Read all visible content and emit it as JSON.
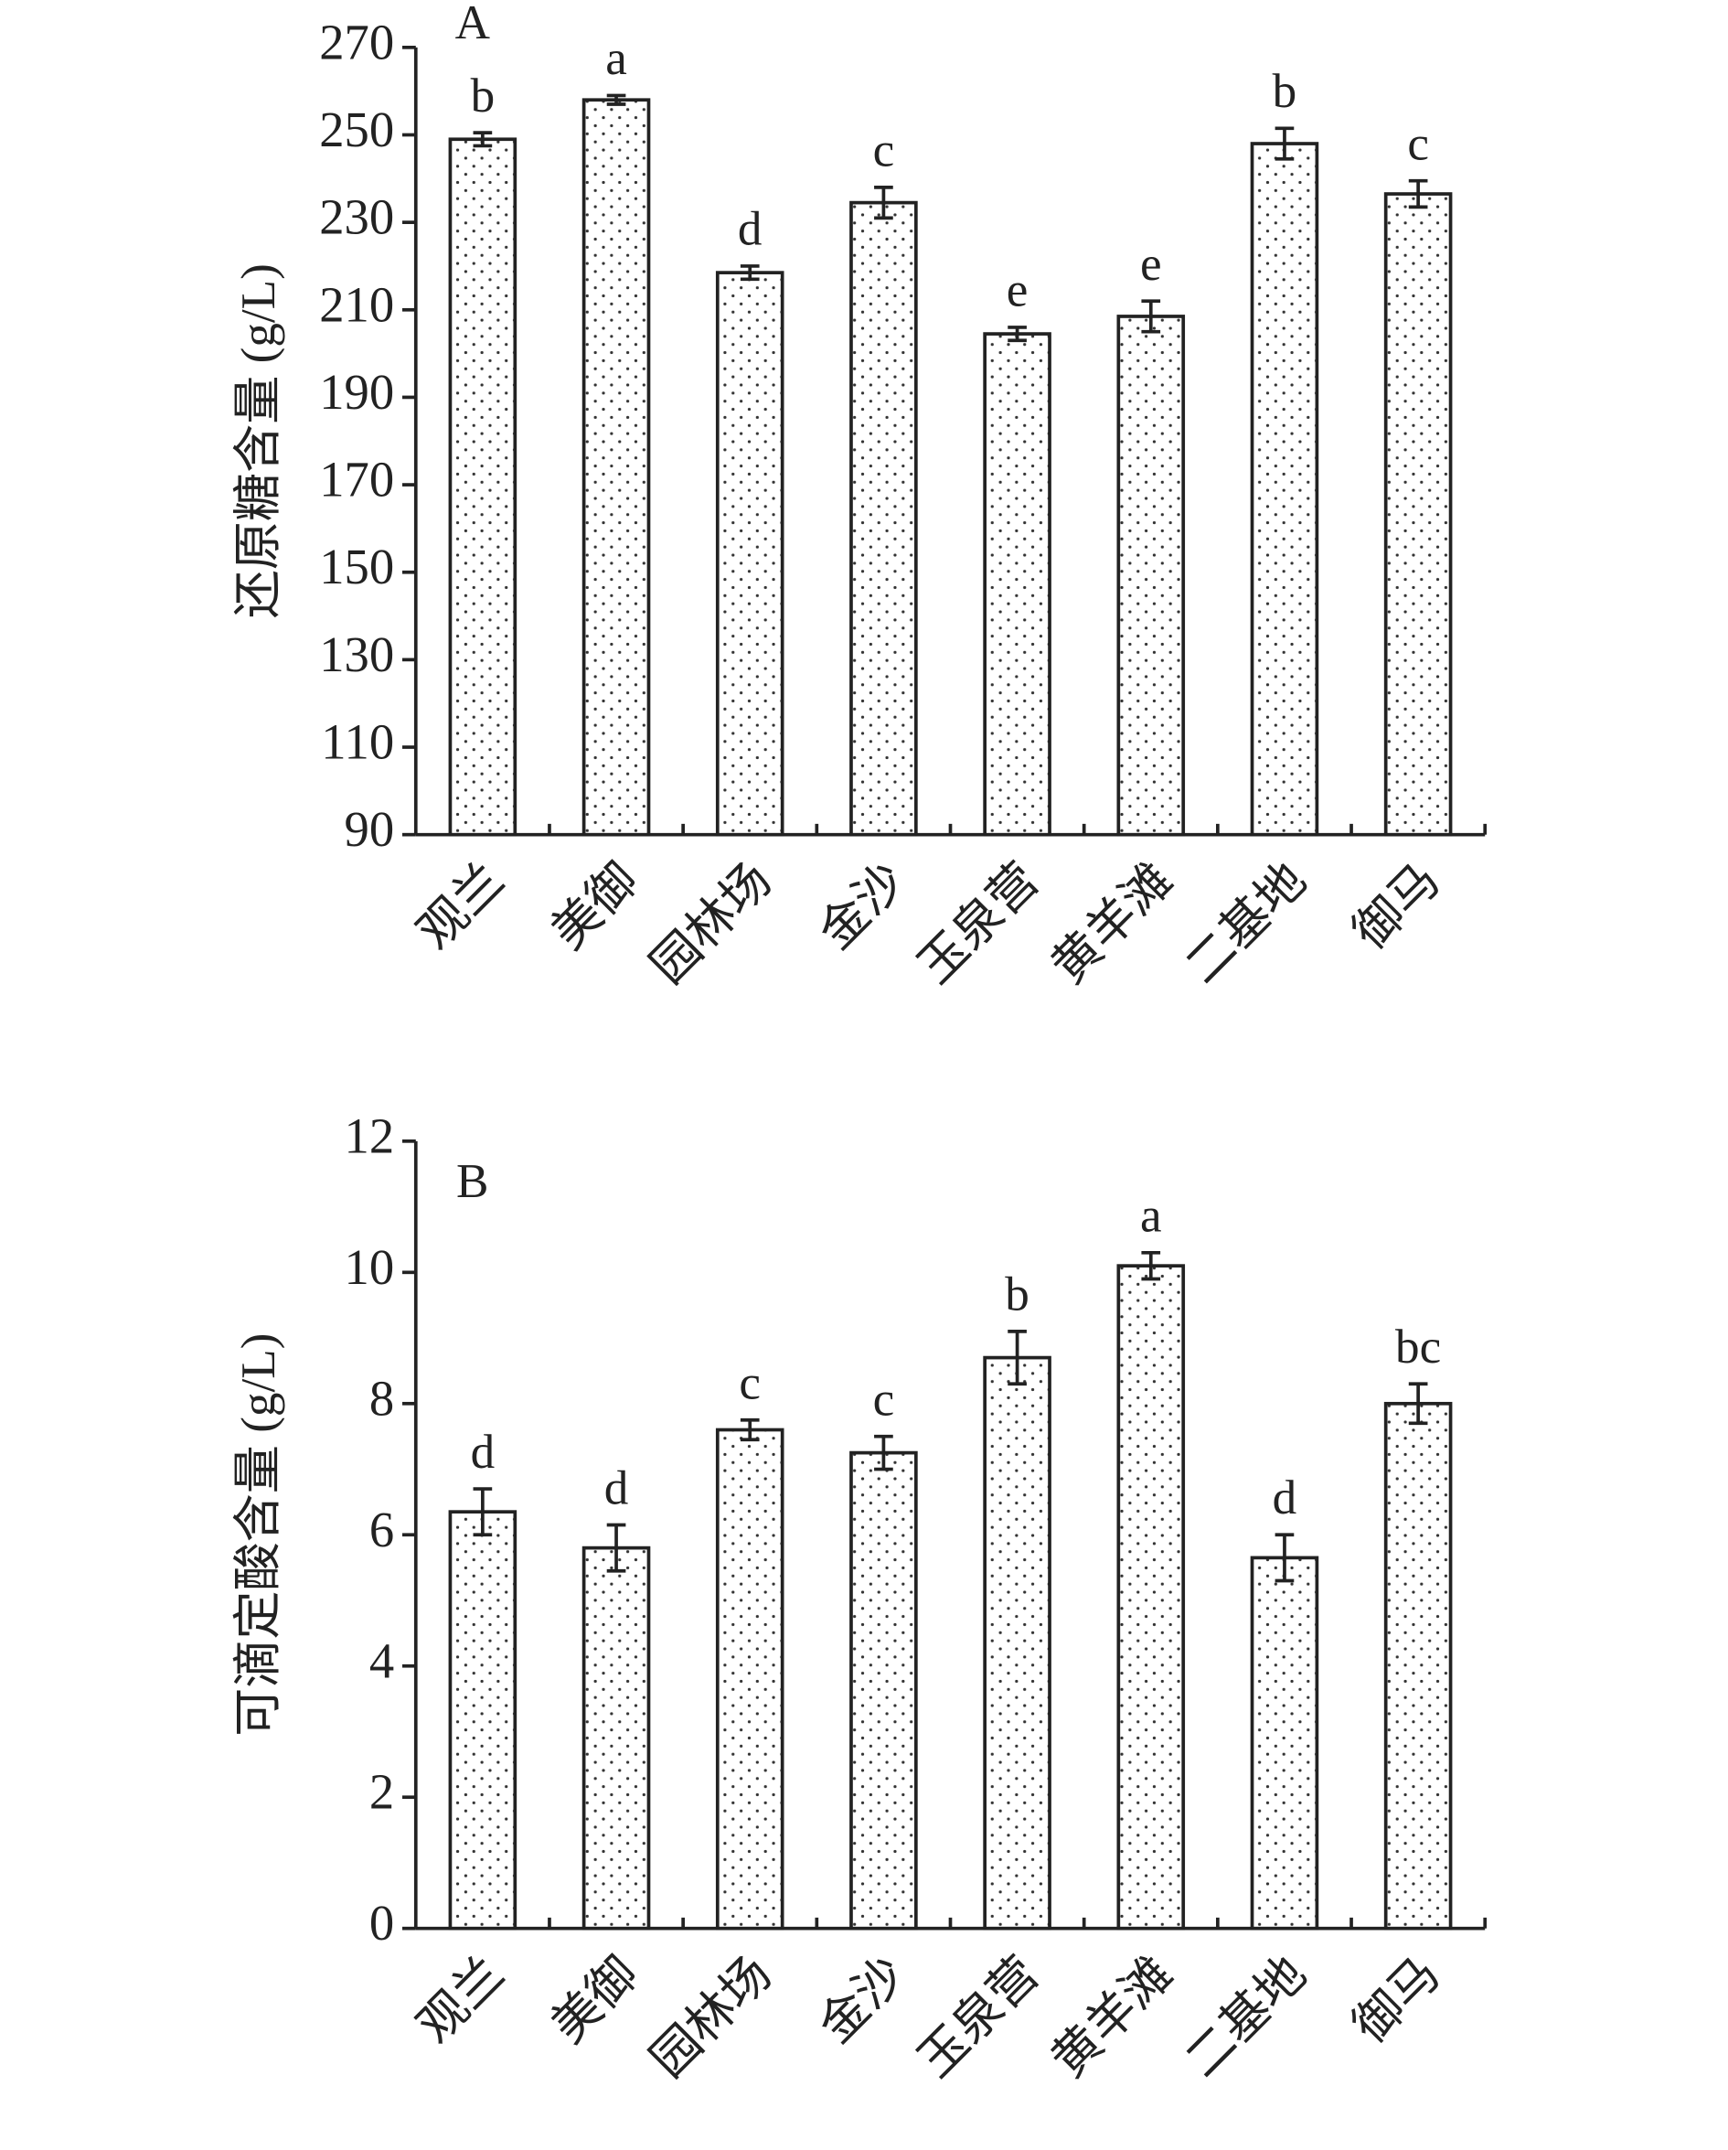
{
  "chart_data": [
    {
      "type": "bar",
      "panel": "A",
      "ylabel": "还原糖含量 (g/L)",
      "categories": [
        "观兰",
        "美御",
        "园林场",
        "金沙",
        "玉泉营",
        "黄羊滩",
        "二基地",
        "御马"
      ],
      "values": [
        249,
        258,
        218.5,
        234.5,
        204.5,
        208.5,
        248,
        236.5
      ],
      "errors": [
        1.5,
        1,
        1.5,
        3.5,
        1.5,
        3.5,
        3.5,
        3
      ],
      "labels": [
        "b",
        "a",
        "d",
        "c",
        "e",
        "e",
        "b",
        "c"
      ],
      "ylim": [
        90,
        270
      ],
      "yticks": [
        90,
        110,
        130,
        150,
        170,
        190,
        210,
        230,
        250,
        270
      ],
      "grid": false
    },
    {
      "type": "bar",
      "panel": "B",
      "ylabel": "可滴定酸含量 (g/L)",
      "categories": [
        "观兰",
        "美御",
        "园林场",
        "金沙",
        "玉泉营",
        "黄羊滩",
        "二基地",
        "御马"
      ],
      "values": [
        6.35,
        5.8,
        7.6,
        7.25,
        8.7,
        10.1,
        5.65,
        8.0
      ],
      "errors": [
        0.35,
        0.35,
        0.15,
        0.25,
        0.4,
        0.2,
        0.35,
        0.3
      ],
      "labels": [
        "d",
        "d",
        "c",
        "c",
        "b",
        "a",
        "d",
        "bc"
      ],
      "ylim": [
        0,
        12
      ],
      "yticks": [
        0,
        2,
        4,
        6,
        8,
        10,
        12
      ],
      "grid": false
    }
  ]
}
